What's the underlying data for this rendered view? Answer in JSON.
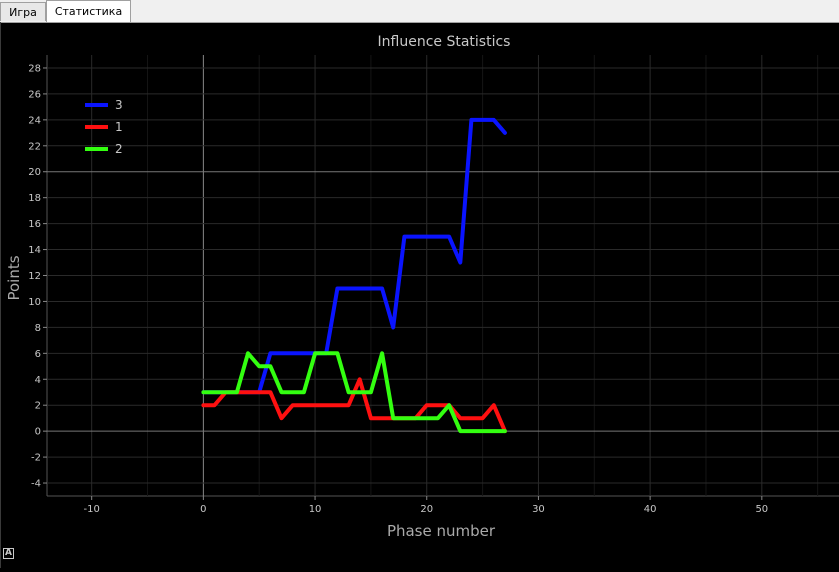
{
  "tabs": [
    {
      "label": "Игра",
      "active": false
    },
    {
      "label": "Статистика",
      "active": true
    }
  ],
  "autoscale_label": "A",
  "colors": {
    "background": "#000000",
    "axis_text": "#c8c8c8",
    "grid": "#2a2a2a",
    "zero_line": "#888888"
  },
  "chart_data": {
    "type": "line",
    "title": "Influence Statistics",
    "xlabel": "Phase number",
    "ylabel": "Points",
    "xlim": [
      -14,
      57
    ],
    "ylim": [
      -5,
      29
    ],
    "xticks": [
      -10,
      0,
      10,
      20,
      30,
      40,
      50
    ],
    "yticks": [
      -4,
      -2,
      0,
      2,
      4,
      6,
      8,
      10,
      12,
      14,
      16,
      18,
      20,
      22,
      24,
      26,
      28
    ],
    "grid": true,
    "legend_position": "top-left",
    "series": [
      {
        "name": "3",
        "color": "#0a14ff",
        "x": [
          0,
          1,
          2,
          3,
          4,
          5,
          6,
          7,
          8,
          9,
          10,
          11,
          12,
          13,
          14,
          15,
          16,
          17,
          18,
          19,
          20,
          21,
          22,
          23,
          24,
          25,
          26,
          27
        ],
        "y": [
          3,
          3,
          3,
          3,
          3,
          3,
          6,
          6,
          6,
          6,
          6,
          6,
          11,
          11,
          11,
          11,
          11,
          8,
          15,
          15,
          15,
          15,
          15,
          13,
          24,
          24,
          24,
          23
        ]
      },
      {
        "name": "1",
        "color": "#ff1010",
        "x": [
          0,
          1,
          2,
          3,
          4,
          5,
          6,
          7,
          8,
          9,
          10,
          11,
          12,
          13,
          14,
          15,
          16,
          17,
          18,
          19,
          20,
          21,
          22,
          23,
          24,
          25,
          26,
          27
        ],
        "y": [
          2,
          2,
          3,
          3,
          3,
          3,
          3,
          1,
          2,
          2,
          2,
          2,
          2,
          2,
          4,
          1,
          1,
          1,
          1,
          1,
          2,
          2,
          2,
          1,
          1,
          1,
          2,
          0
        ]
      },
      {
        "name": "2",
        "color": "#33ff10",
        "x": [
          0,
          1,
          2,
          3,
          4,
          5,
          6,
          7,
          8,
          9,
          10,
          11,
          12,
          13,
          14,
          15,
          16,
          17,
          18,
          19,
          20,
          21,
          22,
          23,
          24,
          25,
          26,
          27
        ],
        "y": [
          3,
          3,
          3,
          3,
          6,
          5,
          5,
          3,
          3,
          3,
          6,
          6,
          6,
          3,
          3,
          3,
          6,
          1,
          1,
          1,
          1,
          1,
          2,
          0,
          0,
          0,
          0,
          0
        ]
      }
    ]
  }
}
